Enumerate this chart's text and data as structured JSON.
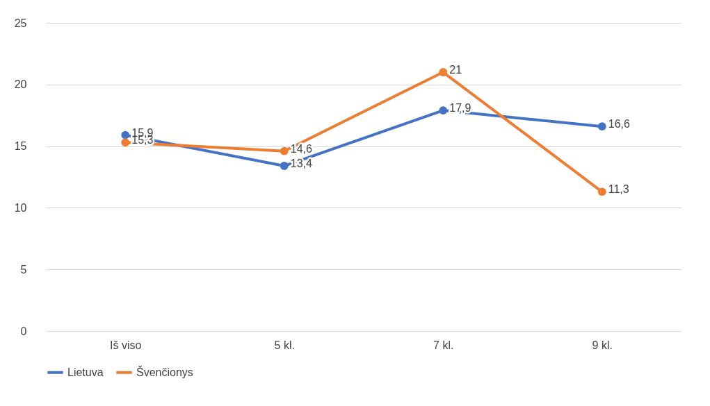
{
  "chart_data": {
    "type": "line",
    "categories": [
      "Iš viso",
      "5 kl.",
      "7 kl.",
      "9 kl."
    ],
    "series": [
      {
        "name": "Lietuva",
        "color": "#4472c4",
        "values": [
          15.9,
          13.4,
          17.9,
          16.6
        ],
        "value_labels": [
          "15,9",
          "13,4",
          "17,9",
          "16,6"
        ]
      },
      {
        "name": "Švenčionys",
        "color": "#ed7d31",
        "values": [
          15.3,
          14.6,
          21,
          11.3
        ],
        "value_labels": [
          "15,3",
          "14,6",
          "21",
          "11,3"
        ]
      }
    ],
    "ylim": [
      0,
      25
    ],
    "yticks": [
      0,
      5,
      10,
      15,
      20,
      25
    ],
    "grid": "y",
    "legend": "bottom",
    "marker": "circle",
    "line_style": "solid"
  }
}
